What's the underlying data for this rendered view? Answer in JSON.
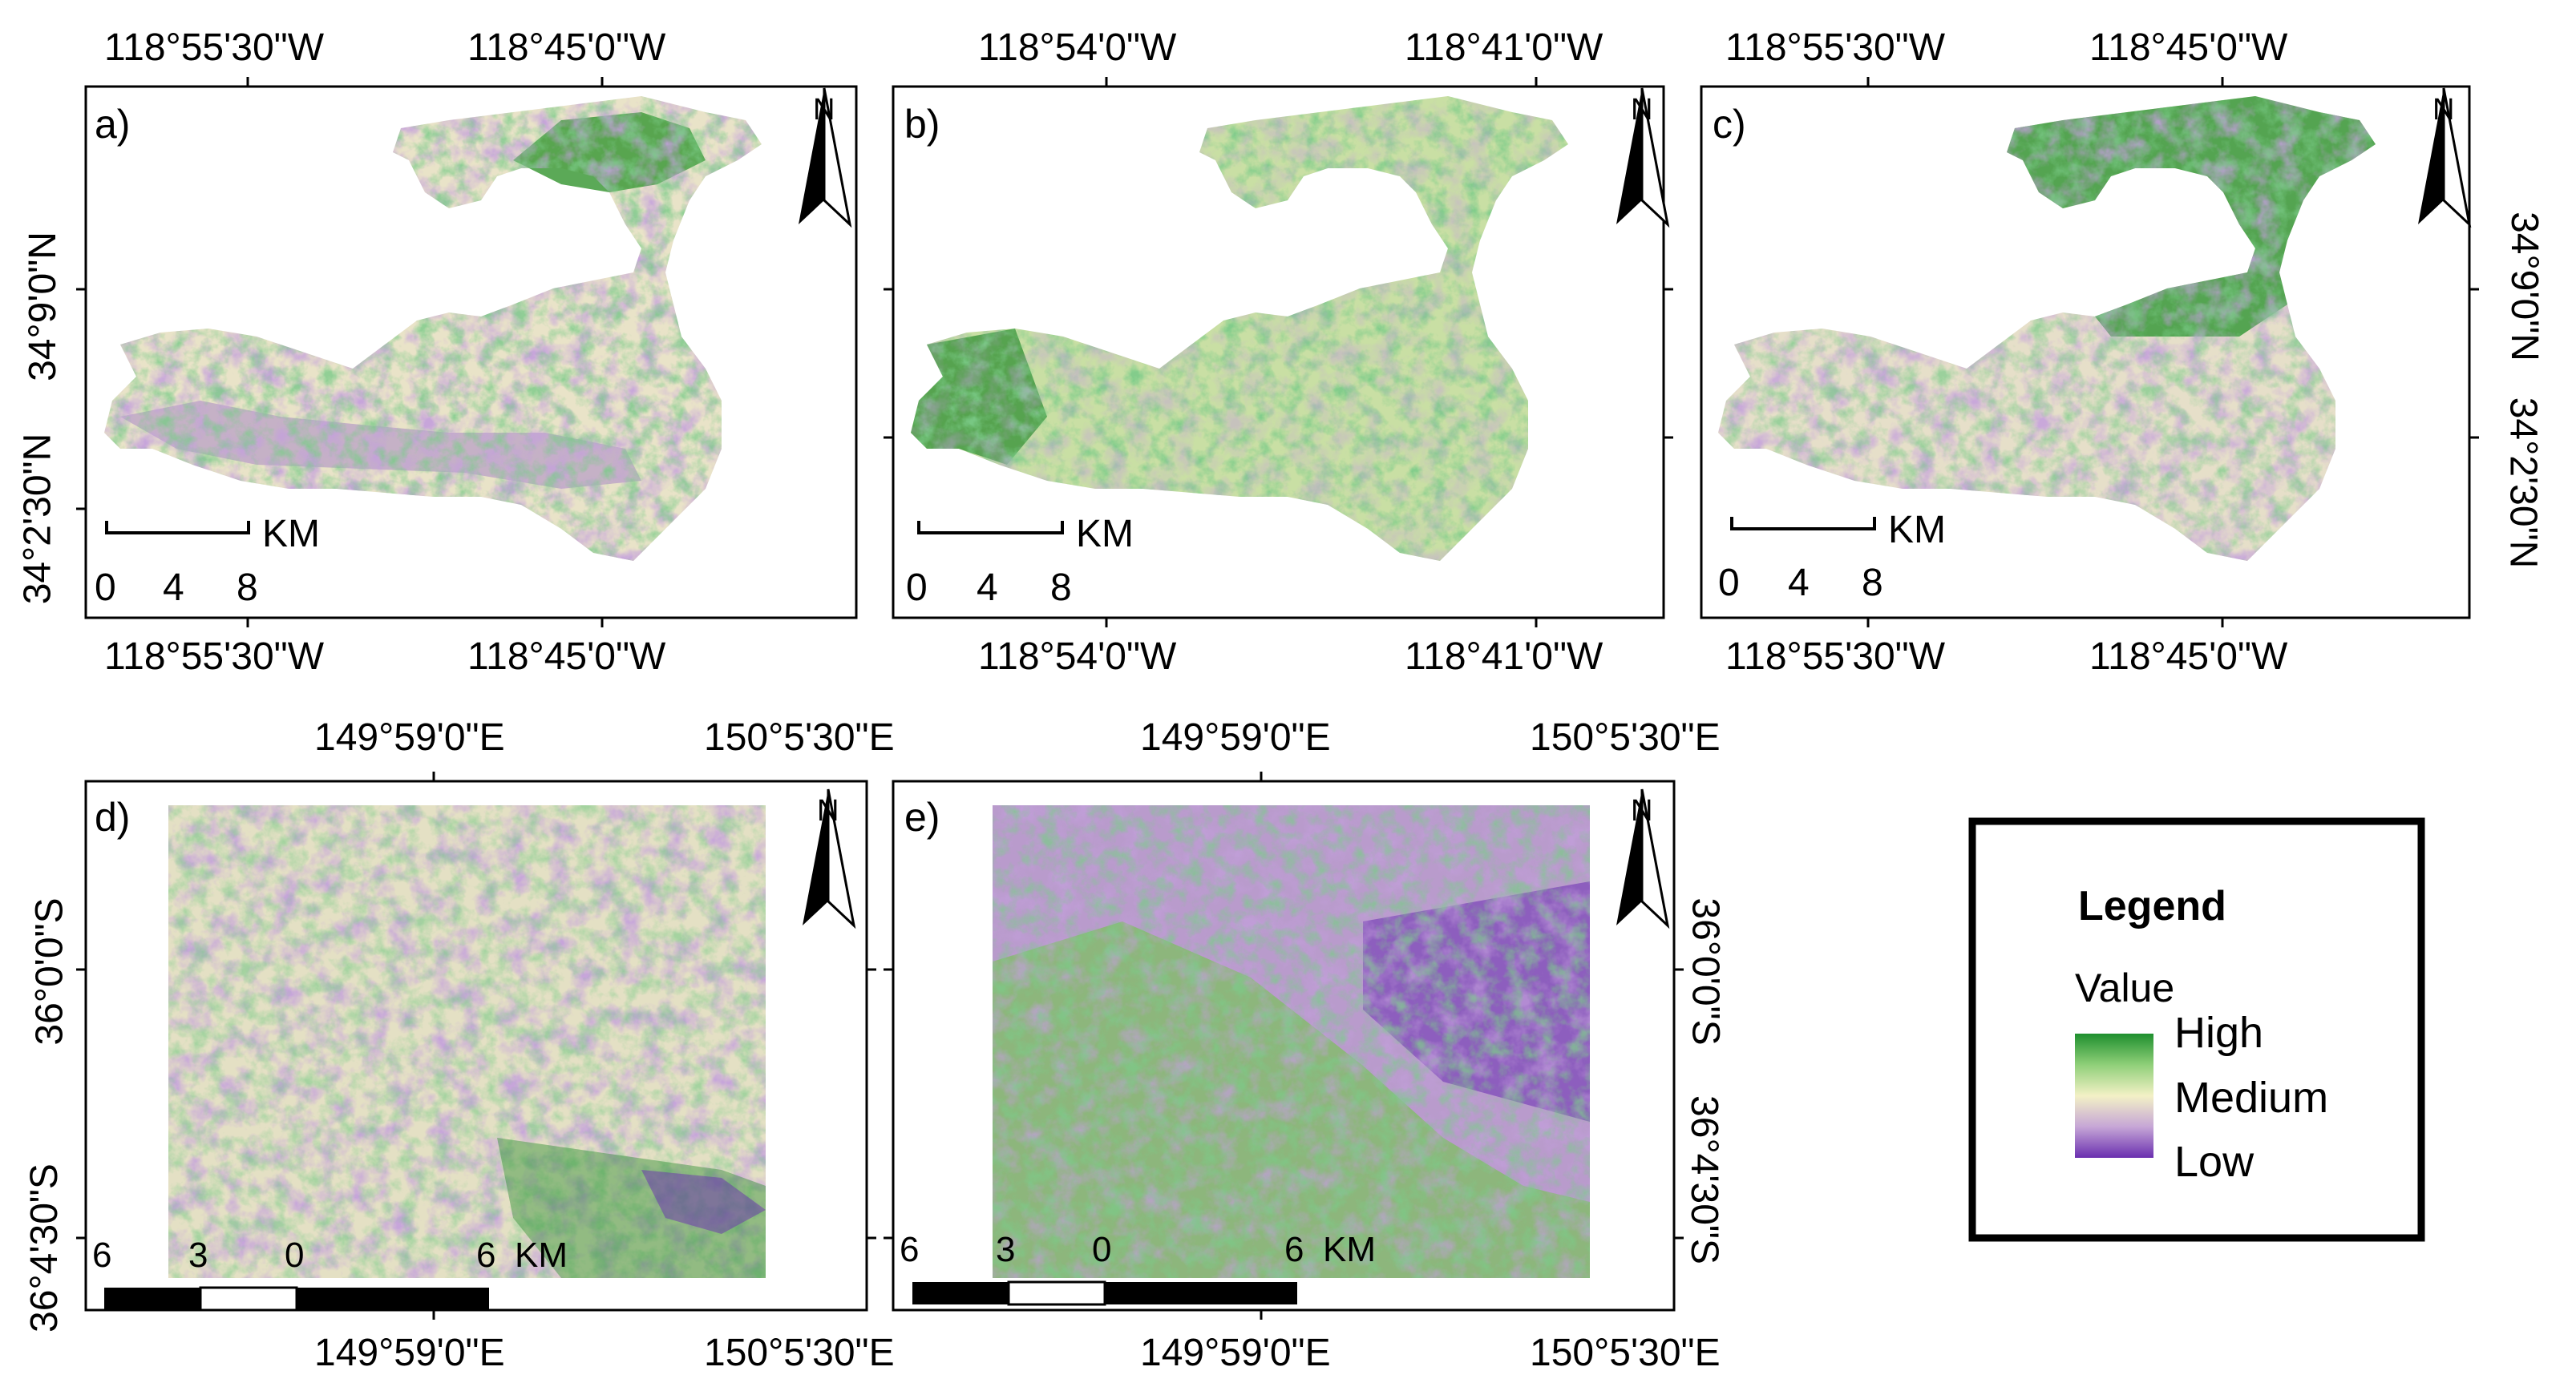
{
  "top_maps": {
    "panels": [
      {
        "label": "a)",
        "top_lon_left": "118°55'30\"W",
        "top_lon_right": "118°45'0\"W",
        "bottom_lon_left": "118°55'30\"W",
        "bottom_lon_right": "118°45'0\"W"
      },
      {
        "label": "b)",
        "top_lon_left": "118°54'0\"W",
        "top_lon_right": "118°41'0\"W",
        "bottom_lon_left": "118°54'0\"W",
        "bottom_lon_right": "118°41'0\"W"
      },
      {
        "label": "c)",
        "top_lon_left": "118°55'30\"W",
        "top_lon_right": "118°45'0\"W",
        "bottom_lon_left": "118°55'30\"W",
        "bottom_lon_right": "118°45'0\"W"
      }
    ],
    "lat_left_upper": "34°9'0\"N",
    "lat_left_lower": "34°2'30\"N",
    "lat_right_upper": "34°9'0\"N",
    "lat_right_lower": "34°2'30\"N",
    "scalebar": {
      "ticks": [
        "0",
        "4",
        "8"
      ],
      "unit": "KM"
    }
  },
  "bottom_maps": {
    "panels": [
      {
        "label": "d)",
        "top_lon_left": "149°59'0\"E",
        "top_lon_right": "150°5'30\"E",
        "bottom_lon_left": "149°59'0\"E",
        "bottom_lon_right": "150°5'30\"E"
      },
      {
        "label": "e)",
        "top_lon_left": "149°59'0\"E",
        "top_lon_right": "150°5'30\"E",
        "bottom_lon_left": "149°59'0\"E",
        "bottom_lon_right": "150°5'30\"E"
      }
    ],
    "lat_left_upper": "36°0'0\"S",
    "lat_left_lower": "36°4'30\"S",
    "lat_right_upper": "36°0'0\"S",
    "lat_right_lower": "36°4'30\"S",
    "scalebar": {
      "ticks": [
        "6",
        "3",
        "0",
        "6"
      ],
      "unit": "KM"
    }
  },
  "north_arrow": {
    "label": "N",
    "icon": "north-arrow-icon"
  },
  "legend": {
    "title": "Legend",
    "field": "Value",
    "high": "High",
    "medium": "Medium",
    "low": "Low",
    "colors": {
      "high": "#1e8f2e",
      "medium": "#f3f1c6",
      "low": "#6a2fb0"
    }
  }
}
